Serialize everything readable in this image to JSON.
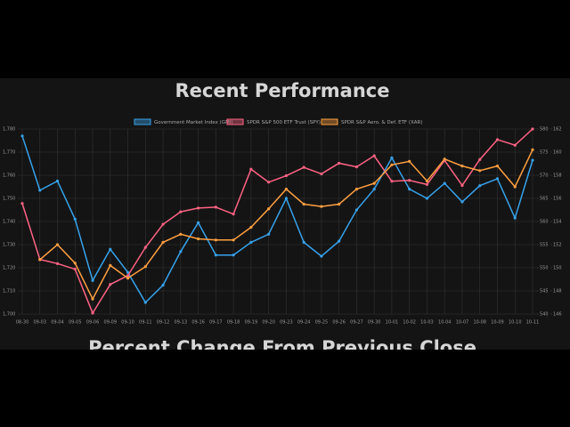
{
  "chart_data": {
    "type": "line",
    "title": "Recent Performance",
    "next_title": "Percent Change From Previous Close",
    "categories": [
      "08-30",
      "09-03",
      "09-04",
      "09-05",
      "09-06",
      "09-09",
      "09-10",
      "09-11",
      "09-12",
      "09-13",
      "09-16",
      "09-17",
      "09-18",
      "09-19",
      "09-20",
      "09-23",
      "09-24",
      "09-25",
      "09-26",
      "09-27",
      "09-30",
      "10-01",
      "10-02",
      "10-03",
      "10-04",
      "10-07",
      "10-08",
      "10-09",
      "10-10",
      "10-11"
    ],
    "series": [
      {
        "name": "Government Market Index (GMI)",
        "color": "#36a2eb",
        "axis": "y",
        "values": [
          1777,
          1753.5,
          1757.5,
          1741,
          1714.5,
          1728,
          1718,
          1705,
          1712.5,
          1727,
          1739.5,
          1725.5,
          1725.5,
          1731,
          1734.5,
          1750,
          1731,
          1725,
          1731.5,
          1745,
          1754,
          1767.5,
          1754,
          1750,
          1756.5,
          1748.5,
          1755.5,
          1758.5,
          1741.5,
          1766.5
        ]
      },
      {
        "name": "SPDR S&P 500 ETF Trust (SPY)",
        "color": "#ff6384",
        "axis": "y2",
        "values": [
          563.9,
          551.8,
          550.9,
          549.7,
          540.2,
          546.4,
          548.3,
          554.4,
          559.4,
          562.1,
          562.9,
          563.1,
          561.6,
          571.3,
          568.5,
          569.9,
          571.7,
          570.3,
          572.6,
          571.8,
          574.2,
          568.7,
          568.9,
          568,
          573.2,
          567.8,
          573.4,
          577.7,
          576.5,
          580
        ]
      },
      {
        "name": "SPDR S&P Aero. & Def. ETF (XAR)",
        "color": "#ff9f40",
        "axis": "y3",
        "values": [
          null,
          150.7,
          152,
          150.4,
          147.3,
          150.2,
          149.1,
          150.1,
          152.2,
          152.9,
          152.5,
          152.4,
          152.4,
          153.5,
          155.1,
          156.8,
          155.5,
          155.3,
          155.5,
          156.8,
          157.3,
          158.9,
          159.2,
          157.5,
          159.4,
          158.8,
          158.4,
          158.8,
          157,
          160.2
        ]
      }
    ],
    "ylim": [
      1700,
      1780
    ],
    "yticks": [
      {
        "value": 1700,
        "label": "1,700"
      },
      {
        "value": 1710,
        "label": "1,710"
      },
      {
        "value": 1720,
        "label": "1,720"
      },
      {
        "value": 1730,
        "label": "1,730"
      },
      {
        "value": 1740,
        "label": "1,740"
      },
      {
        "value": 1750,
        "label": "1,750"
      },
      {
        "value": 1760,
        "label": "1,760"
      },
      {
        "value": 1770,
        "label": "1,770"
      },
      {
        "value": 1780,
        "label": "1,780"
      }
    ],
    "y2lim": [
      540,
      580
    ],
    "y2ticks": [
      540,
      545,
      550,
      555,
      560,
      565,
      570,
      575,
      580
    ],
    "y3lim": [
      146,
      162
    ],
    "y3ticks": [
      146,
      148,
      150,
      152,
      154,
      156,
      158,
      160,
      162
    ],
    "grid": true
  }
}
